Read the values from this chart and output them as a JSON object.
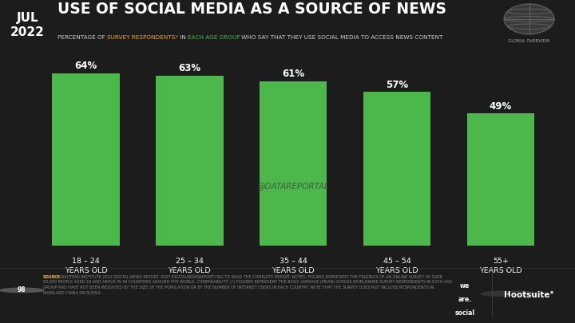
{
  "title": "USE OF SOCIAL MEDIA AS A SOURCE OF NEWS",
  "date_label": "JUL\n2022",
  "categories": [
    "18 – 24\nYEARS OLD",
    "25 – 34\nYEARS OLD",
    "35 – 44\nYEARS OLD",
    "45 – 54\nYEARS OLD",
    "55+\nYEARS OLD"
  ],
  "values": [
    64,
    63,
    61,
    57,
    49
  ],
  "bar_color": "#4cb84c",
  "background_color": "#1c1c1c",
  "date_bg_color": "#4cb84c",
  "text_color": "#ffffff",
  "subtitle_orange": "SURVEY RESPONDENTS*",
  "subtitle_green": "EACH AGE GROUP",
  "watermark": "@DATAREPORTAL",
  "footer_text": "REUTERS INSTITUTE 2022 DIGITAL NEWS REPORT. VISIT DIGITALNEWSREPORT.ORG TO READ THE COMPLETE REPORT. NOTES: FIGURES REPRESENT THE FINDINGS OF AN ONLINE SURVEY OF OVER 93,000 PEOPLE AGED 18 AND ABOVE IN 46 COUNTRIES AROUND THE WORLD. COMPARABILITY: (*) FIGURES REPRESENT THE BASIC AVERAGE (MEAN) ACROSS WORLDWIDE SURVEY RESPONDENTS IN EACH AGE GROUP AND HAVE NOT BEEN WEIGHTED BY THE SIZE OF THE POPULATION OR BY THE NUMBER OF INTERNET USERS IN EACH COUNTRY. NOTE THAT THE SURVEY DOES NOT INCLUDE RESPONDENTS IN MAINLAND CHINA OR RUSSIA.",
  "page_num": "98",
  "ylim": [
    0,
    72
  ]
}
